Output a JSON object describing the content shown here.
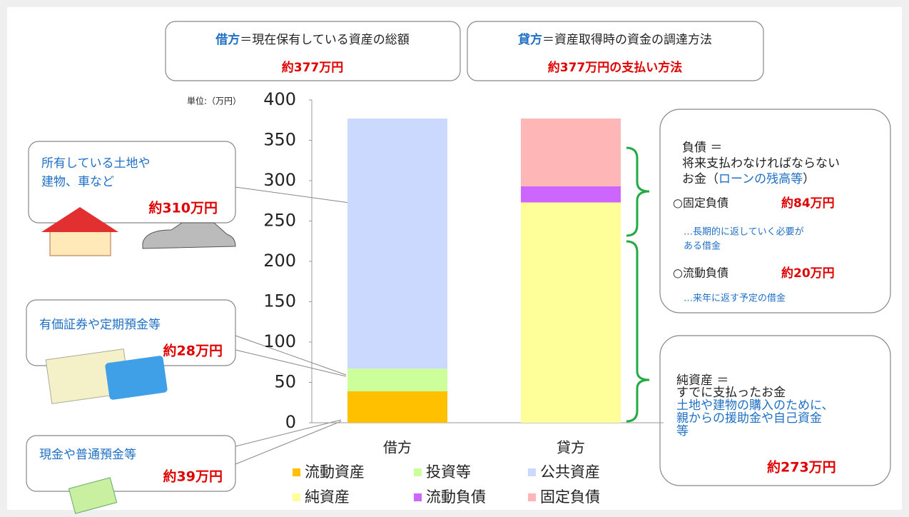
{
  "header": [
    {
      "label": "借方",
      "text": "＝現在保有している資産の総額",
      "amount": "約377万円"
    },
    {
      "label": "貸方",
      "text": "＝資産取得時の資金の調達方法",
      "amount": "約377万円の支払い方法"
    }
  ],
  "chart_data": {
    "type": "bar",
    "stacked": true,
    "unit_label": "単位:（万円）",
    "categories": [
      "借方",
      "貸方"
    ],
    "series": [
      {
        "name": "流動資産",
        "color": "#ffc000",
        "values": [
          39,
          null
        ]
      },
      {
        "name": "投資等",
        "color": "#ccff99",
        "values": [
          28,
          null
        ]
      },
      {
        "name": "公共資産",
        "color": "#ccd9ff",
        "values": [
          310,
          null
        ]
      },
      {
        "name": "純資産",
        "color": "#ffff99",
        "values": [
          null,
          273
        ]
      },
      {
        "name": "流動負債",
        "color": "#cc66ff",
        "values": [
          null,
          20
        ]
      },
      {
        "name": "固定負債",
        "color": "#ffb6b6",
        "values": [
          null,
          84
        ]
      }
    ],
    "ylim": [
      0,
      400
    ],
    "yticks": [
      0,
      50,
      100,
      150,
      200,
      250,
      300,
      350,
      400
    ]
  },
  "left_notes": [
    {
      "lines": [
        "所有している土地や",
        "建物、車など"
      ],
      "amount": "約310万円"
    },
    {
      "lines": [
        "有価証券や定期預金等"
      ],
      "amount": "約28万円"
    },
    {
      "lines": [
        "現金や普通預金等"
      ],
      "amount": "約39万円"
    }
  ],
  "liabilities": {
    "title": "負債 ＝",
    "line1": "将来支払わなければならない",
    "line2_start": "お金（",
    "line2_blue": "ローンの残高等",
    "line2_end": "）",
    "fixed_label": "○固定負債",
    "fixed_amount": "約84万円",
    "fixed_note": [
      "…長期的に返していく必要が",
      "ある借金"
    ],
    "current_label": "○流動負債",
    "current_amount": "約20万円",
    "current_note": "…来年に返す予定の借金"
  },
  "net_assets": {
    "title": "純資産 ＝",
    "line1": "すでに支払ったお金",
    "blue_lines": [
      "土地や建物の購入のために、",
      "親からの援助金や自己資金",
      "等"
    ],
    "amount": "約273万円"
  }
}
